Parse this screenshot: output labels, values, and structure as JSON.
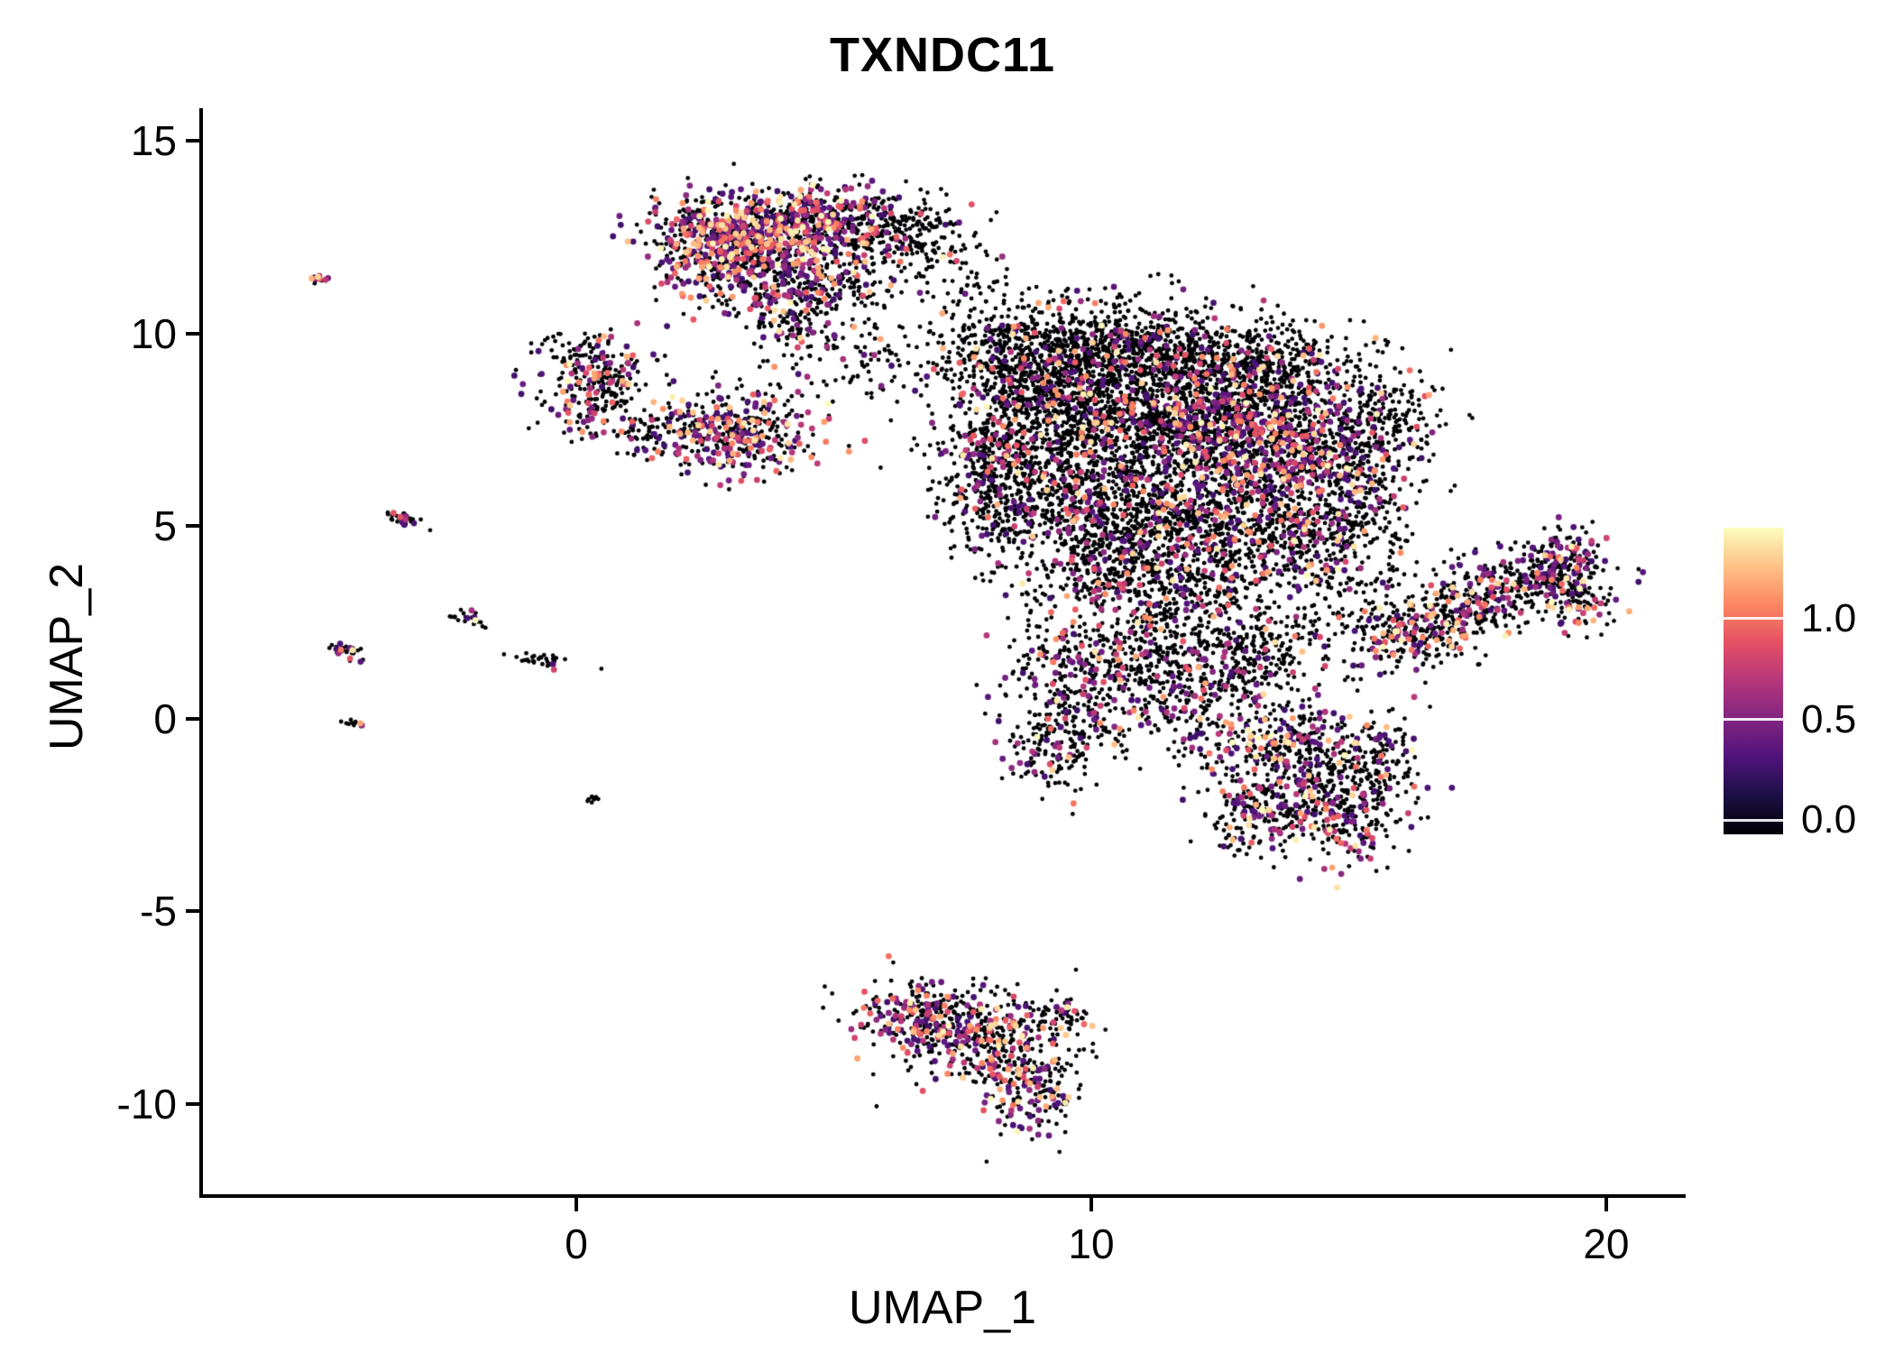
{
  "title": "TXNDC11",
  "axes": {
    "x": {
      "label": "UMAP_1",
      "ticks": [
        0,
        10,
        20
      ]
    },
    "y": {
      "label": "UMAP_2",
      "ticks": [
        15,
        10,
        5,
        0,
        -5,
        -10
      ]
    }
  },
  "colorbar": {
    "tick_values": [
      1.0,
      0.5,
      0.0
    ],
    "colors": [
      "#000004",
      "#1C1044",
      "#4F127B",
      "#812581",
      "#B5367A",
      "#E55064",
      "#FB8761",
      "#FEC287",
      "#FBFDBF"
    ]
  },
  "chart_data": {
    "type": "scatter",
    "title": "TXNDC11",
    "xlabel": "UMAP_1",
    "ylabel": "UMAP_2",
    "xlim": [
      -7.27,
      21.49
    ],
    "ylim": [
      -12.4,
      15.8
    ],
    "grid": false,
    "legend_position": "right",
    "colormap": "magma",
    "colors": [
      "#000004",
      "#1C1044",
      "#4F127B",
      "#812581",
      "#B5367A",
      "#E55064",
      "#FB8761",
      "#FEC287",
      "#FBFDBF"
    ],
    "color_domain": [
      -0.07,
      1.45
    ],
    "legend_ticks": [
      0.0,
      0.5,
      1.0
    ],
    "seed": 42,
    "point_style": {
      "r_base": 2.4,
      "r_expr": 3.4,
      "v_min": 0.25,
      "v_max": 1.45,
      "v_pow": 1.8
    },
    "clusters": [
      {
        "x": -5.0,
        "y": 11.4,
        "sx": 0.12,
        "sy": 0.07,
        "rot": -25,
        "n": 14,
        "frac": 0.35
      },
      {
        "x": -3.3,
        "y": 5.15,
        "sx": 0.22,
        "sy": 0.1,
        "rot": -28,
        "n": 30,
        "frac": 0.3
      },
      {
        "x": -4.5,
        "y": 1.8,
        "sx": 0.22,
        "sy": 0.1,
        "rot": -28,
        "n": 30,
        "frac": 0.3
      },
      {
        "x": -2.05,
        "y": 2.55,
        "sx": 0.18,
        "sy": 0.09,
        "rot": -28,
        "n": 22,
        "frac": 0.3
      },
      {
        "x": -0.7,
        "y": 1.5,
        "sx": 0.28,
        "sy": 0.1,
        "rot": -15,
        "n": 30,
        "frac": 0.25
      },
      {
        "x": -4.35,
        "y": -0.1,
        "sx": 0.1,
        "sy": 0.06,
        "rot": -20,
        "n": 12,
        "frac": 0.15
      },
      {
        "x": 0.3,
        "y": -2.1,
        "sx": 0.07,
        "sy": 0.06,
        "rot": 0,
        "n": 8,
        "frac": 0.1
      },
      {
        "x": 2.9,
        "y": 12.5,
        "sx": 0.75,
        "sy": 0.55,
        "rot": 0,
        "n": 550,
        "frac": 0.5
      },
      {
        "x": 4.4,
        "y": 12.9,
        "sx": 0.7,
        "sy": 0.4,
        "rot": 10,
        "n": 350,
        "frac": 0.4
      },
      {
        "x": 5.6,
        "y": 12.8,
        "sx": 0.55,
        "sy": 0.45,
        "rot": 0,
        "n": 220,
        "frac": 0.2
      },
      {
        "x": 6.5,
        "y": 12.6,
        "sx": 0.35,
        "sy": 0.4,
        "rot": 0,
        "n": 90,
        "frac": 0.1
      },
      {
        "x": 3.6,
        "y": 11.4,
        "sx": 0.8,
        "sy": 0.5,
        "rot": 0,
        "n": 300,
        "frac": 0.35
      },
      {
        "x": 4.3,
        "y": 10.3,
        "sx": 0.45,
        "sy": 0.6,
        "rot": 0,
        "n": 130,
        "frac": 0.2
      },
      {
        "x": 5.3,
        "y": 11.4,
        "sx": 0.5,
        "sy": 0.5,
        "rot": 0,
        "n": 140,
        "frac": 0.2
      },
      {
        "x": 7.2,
        "y": 12.4,
        "sx": 0.45,
        "sy": 0.5,
        "rot": 0,
        "n": 60,
        "frac": 0.05
      },
      {
        "x": 7.6,
        "y": 10.9,
        "sx": 0.5,
        "sy": 0.8,
        "rot": 0,
        "n": 60,
        "frac": 0.08
      },
      {
        "x": 5.8,
        "y": 9.3,
        "sx": 0.7,
        "sy": 0.6,
        "rot": 0,
        "n": 90,
        "frac": 0.1
      },
      {
        "x": 0.3,
        "y": 9.2,
        "sx": 0.55,
        "sy": 0.4,
        "rot": 0,
        "n": 150,
        "frac": 0.3
      },
      {
        "x": 0.45,
        "y": 8.2,
        "sx": 0.5,
        "sy": 0.45,
        "rot": 0,
        "n": 140,
        "frac": 0.25
      },
      {
        "x": 1.4,
        "y": 7.5,
        "sx": 0.4,
        "sy": 0.35,
        "rot": 0,
        "n": 70,
        "frac": 0.2
      },
      {
        "x": 3.1,
        "y": 7.5,
        "sx": 0.75,
        "sy": 0.6,
        "rot": 0,
        "n": 380,
        "frac": 0.45
      },
      {
        "x": 8.6,
        "y": 9.4,
        "sx": 0.8,
        "sy": 0.7,
        "rot": 0,
        "n": 450,
        "frac": 0.1
      },
      {
        "x": 10.2,
        "y": 9.6,
        "sx": 0.9,
        "sy": 0.65,
        "rot": 0,
        "n": 550,
        "frac": 0.1
      },
      {
        "x": 12.0,
        "y": 9.3,
        "sx": 0.9,
        "sy": 0.7,
        "rot": 0,
        "n": 500,
        "frac": 0.12
      },
      {
        "x": 13.6,
        "y": 9.0,
        "sx": 0.7,
        "sy": 0.6,
        "rot": 0,
        "n": 300,
        "frac": 0.12
      },
      {
        "x": 9.3,
        "y": 8.0,
        "sx": 1.0,
        "sy": 0.7,
        "rot": 0,
        "n": 550,
        "frac": 0.12
      },
      {
        "x": 11.3,
        "y": 7.6,
        "sx": 1.0,
        "sy": 0.8,
        "rot": 0,
        "n": 700,
        "frac": 0.18
      },
      {
        "x": 13.0,
        "y": 7.5,
        "sx": 0.8,
        "sy": 0.8,
        "rot": 0,
        "n": 600,
        "frac": 0.3
      },
      {
        "x": 14.4,
        "y": 6.8,
        "sx": 0.7,
        "sy": 0.9,
        "rot": 0,
        "n": 400,
        "frac": 0.25
      },
      {
        "x": 15.6,
        "y": 7.8,
        "sx": 0.6,
        "sy": 0.9,
        "rot": 0,
        "n": 250,
        "frac": 0.12
      },
      {
        "x": 8.1,
        "y": 6.9,
        "sx": 0.5,
        "sy": 0.6,
        "rot": 0,
        "n": 150,
        "frac": 0.25
      },
      {
        "x": 9.0,
        "y": 6.0,
        "sx": 0.9,
        "sy": 0.8,
        "rot": 0,
        "n": 450,
        "frac": 0.15
      },
      {
        "x": 10.8,
        "y": 5.4,
        "sx": 1.0,
        "sy": 0.8,
        "rot": 0,
        "n": 550,
        "frac": 0.15
      },
      {
        "x": 12.6,
        "y": 5.2,
        "sx": 0.9,
        "sy": 0.8,
        "rot": 0,
        "n": 450,
        "frac": 0.2
      },
      {
        "x": 14.2,
        "y": 4.6,
        "sx": 0.7,
        "sy": 0.8,
        "rot": 0,
        "n": 300,
        "frac": 0.18
      },
      {
        "x": 10.3,
        "y": 3.9,
        "sx": 0.9,
        "sy": 0.6,
        "rot": 0,
        "n": 300,
        "frac": 0.15
      },
      {
        "x": 12.0,
        "y": 3.4,
        "sx": 0.8,
        "sy": 0.7,
        "rot": 0,
        "n": 280,
        "frac": 0.15
      },
      {
        "x": 15.4,
        "y": 5.6,
        "sx": 0.5,
        "sy": 1.0,
        "rot": 0,
        "n": 180,
        "frac": 0.18
      },
      {
        "x": 8.0,
        "y": 5.6,
        "sx": 0.4,
        "sy": 0.9,
        "rot": 0,
        "n": 120,
        "frac": 0.2
      },
      {
        "x": 9.7,
        "y": 0.8,
        "sx": 0.7,
        "sy": 1.0,
        "rot": 0,
        "n": 320,
        "frac": 0.25
      },
      {
        "x": 10.9,
        "y": 1.8,
        "sx": 0.6,
        "sy": 0.8,
        "rot": 0,
        "n": 220,
        "frac": 0.15
      },
      {
        "x": 12.2,
        "y": 0.6,
        "sx": 0.8,
        "sy": 0.7,
        "rot": 0,
        "n": 280,
        "frac": 0.2
      },
      {
        "x": 13.3,
        "y": 1.8,
        "sx": 0.6,
        "sy": 0.6,
        "rot": 0,
        "n": 180,
        "frac": 0.15
      },
      {
        "x": 9.3,
        "y": -0.9,
        "sx": 0.5,
        "sy": 0.5,
        "rot": 0,
        "n": 120,
        "frac": 0.2
      },
      {
        "x": 13.8,
        "y": -0.9,
        "sx": 0.8,
        "sy": 0.7,
        "rot": 0,
        "n": 380,
        "frac": 0.3
      },
      {
        "x": 14.8,
        "y": -2.3,
        "sx": 0.7,
        "sy": 0.7,
        "rot": 0,
        "n": 300,
        "frac": 0.3
      },
      {
        "x": 13.2,
        "y": -2.5,
        "sx": 0.5,
        "sy": 0.5,
        "rot": 0,
        "n": 140,
        "frac": 0.25
      },
      {
        "x": 15.6,
        "y": -0.9,
        "sx": 0.4,
        "sy": 0.5,
        "rot": 0,
        "n": 100,
        "frac": 0.2
      },
      {
        "x": 15.0,
        "y": 2.5,
        "sx": 0.8,
        "sy": 0.8,
        "rot": 0,
        "n": 100,
        "frac": 0.1
      },
      {
        "x": 16.6,
        "y": 2.4,
        "sx": 0.8,
        "sy": 0.45,
        "rot": 25,
        "n": 260,
        "frac": 0.28
      },
      {
        "x": 17.9,
        "y": 3.3,
        "sx": 0.9,
        "sy": 0.5,
        "rot": 25,
        "n": 320,
        "frac": 0.3
      },
      {
        "x": 19.1,
        "y": 4.0,
        "sx": 0.5,
        "sy": 0.45,
        "rot": 25,
        "n": 180,
        "frac": 0.3
      },
      {
        "x": 19.5,
        "y": 3.0,
        "sx": 0.3,
        "sy": 0.4,
        "rot": 0,
        "n": 70,
        "frac": 0.25
      },
      {
        "x": 6.8,
        "y": -7.7,
        "sx": 0.7,
        "sy": 0.45,
        "rot": 0,
        "n": 260,
        "frac": 0.35
      },
      {
        "x": 8.0,
        "y": -8.4,
        "sx": 0.8,
        "sy": 0.6,
        "rot": 0,
        "n": 340,
        "frac": 0.35
      },
      {
        "x": 8.8,
        "y": -9.7,
        "sx": 0.45,
        "sy": 0.55,
        "rot": 0,
        "n": 170,
        "frac": 0.4
      },
      {
        "x": 9.4,
        "y": -7.8,
        "sx": 0.3,
        "sy": 0.3,
        "rot": 0,
        "n": 50,
        "frac": 0.2
      }
    ]
  }
}
